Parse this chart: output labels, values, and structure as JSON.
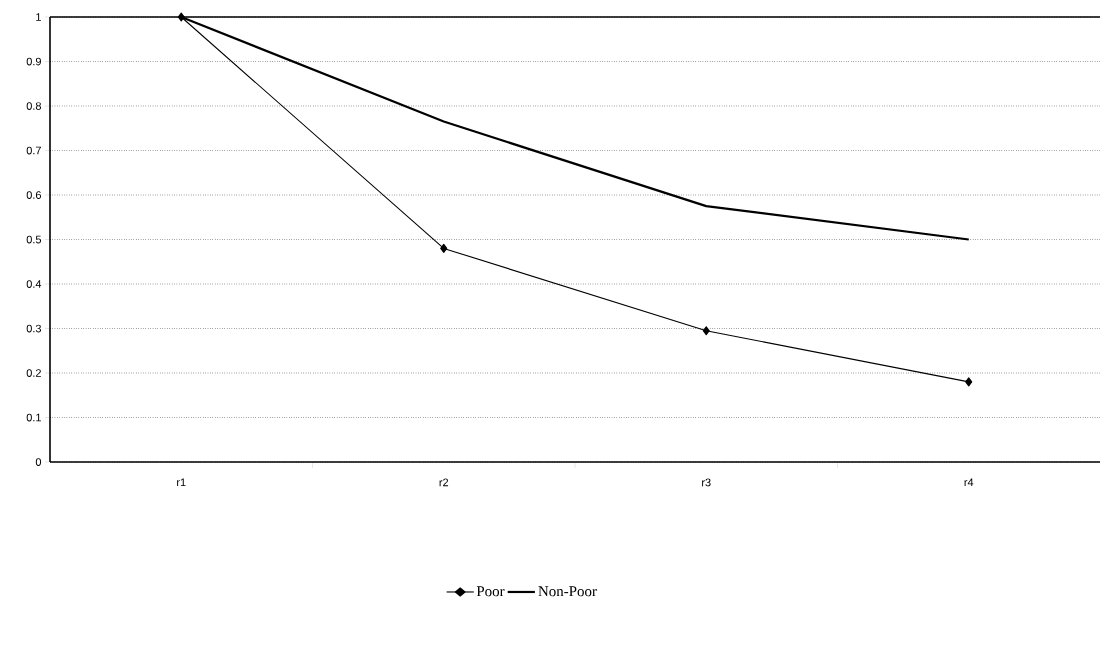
{
  "chart_data": {
    "type": "line",
    "categories": [
      "r1",
      "r2",
      "r3",
      "r4"
    ],
    "series": [
      {
        "name": "Poor",
        "color": "#000000",
        "marker": "diamond",
        "values": [
          1,
          0.48,
          0.295,
          0.18
        ]
      },
      {
        "name": "Non-Poor",
        "color": "#000000",
        "marker": "none",
        "values": [
          1,
          0.765,
          0.575,
          0.5
        ]
      }
    ],
    "ylim": [
      0,
      1
    ],
    "yticks": [
      0,
      0.1,
      0.2,
      0.3,
      0.4,
      0.5,
      0.6,
      0.7,
      0.8,
      0.9,
      1
    ],
    "grid": "y",
    "legend": "bottom",
    "line_style": "solid"
  }
}
